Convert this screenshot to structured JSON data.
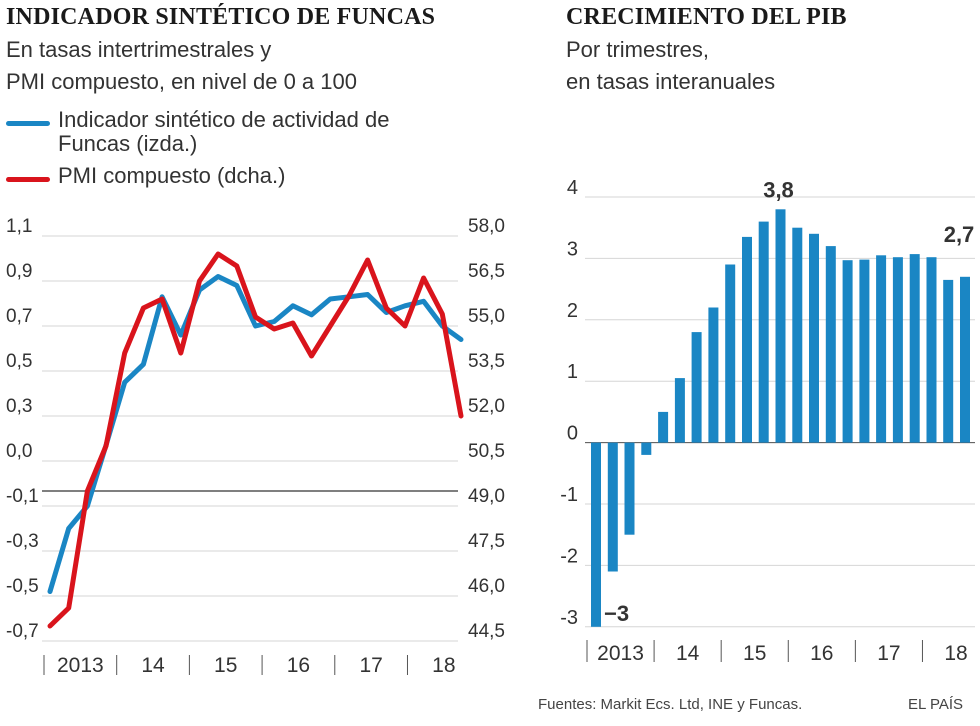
{
  "left_panel": {
    "title": "INDICADOR SINTÉTICO DE FUNCAS",
    "subtitle_line1": "En tasas intertrimestrales y",
    "subtitle_line2": "PMI compuesto, en nivel de 0 a 100",
    "legend": [
      {
        "label": "Indicador sintético de actividad de Funcas (izda.)",
        "color": "#1a86c4"
      },
      {
        "label": "PMI compuesto (dcha.)",
        "color": "#d9141c"
      }
    ]
  },
  "right_panel": {
    "title": "CRECIMIENTO DEL PIB",
    "subtitle_line1": "Por trimestres,",
    "subtitle_line2": "en tasas interanuales"
  },
  "footer": {
    "sources": "Fuentes: Markit Ecs. Ltd, INE y Funcas.",
    "brand": "EL PAÍS"
  },
  "colors": {
    "blue": "#1a86c4",
    "red": "#d9141c",
    "grid": "#d6d6d6",
    "axis": "#555555"
  },
  "chart_data": [
    {
      "type": "line",
      "title": "INDICADOR SINTÉTICO DE FUNCAS",
      "x": [
        "2013-Q1",
        "2013-Q2",
        "2013-Q3",
        "2013-Q4",
        "2014-Q1",
        "2014-Q2",
        "2014-Q3",
        "2014-Q4",
        "2015-Q1",
        "2015-Q2",
        "2015-Q3",
        "2015-Q4",
        "2016-Q1",
        "2016-Q2",
        "2016-Q3",
        "2016-Q4",
        "2017-Q1",
        "2017-Q2",
        "2017-Q3",
        "2017-Q4",
        "2018-Q1",
        "2018-Q2",
        "2018-Q3"
      ],
      "x_tick_labels": [
        "2013",
        "14",
        "15",
        "16",
        "17",
        "18"
      ],
      "y_left": {
        "ylim": [
          -0.7,
          1.1
        ],
        "ticks": [
          "1,1",
          "0,9",
          "0,7",
          "0,5",
          "0,3",
          "0,0",
          "-0,1",
          "-0,3",
          "-0,5",
          "-0,7"
        ]
      },
      "y_right": {
        "ylim": [
          44.5,
          58.0
        ],
        "ticks": [
          "58,0",
          "56,5",
          "55,0",
          "53,5",
          "52,0",
          "50,5",
          "49,0",
          "47,5",
          "46,0",
          "44,5"
        ]
      },
      "reference_line": {
        "axis": "right",
        "value": 49.5
      },
      "series": [
        {
          "name": "Indicador sintético de actividad de Funcas (izda.)",
          "axis": "left",
          "color": "#1a86c4",
          "values": [
            -0.48,
            -0.2,
            -0.1,
            0.17,
            0.45,
            0.53,
            0.83,
            0.66,
            0.86,
            0.92,
            0.88,
            0.7,
            0.72,
            0.79,
            0.75,
            0.82,
            0.83,
            0.84,
            0.76,
            0.79,
            0.81,
            0.7,
            0.64
          ]
        },
        {
          "name": "PMI compuesto (dcha.)",
          "axis": "right",
          "color": "#d9141c",
          "values": [
            45.0,
            45.6,
            49.5,
            51.0,
            54.1,
            55.6,
            55.9,
            54.1,
            56.5,
            57.4,
            57.0,
            55.3,
            54.9,
            55.1,
            54.0,
            55.0,
            56.0,
            57.2,
            55.6,
            55.0,
            56.6,
            55.4,
            52.0
          ]
        }
      ]
    },
    {
      "type": "bar",
      "title": "CRECIMIENTO DEL PIB",
      "categories": [
        "2013-Q1",
        "2013-Q2",
        "2013-Q3",
        "2013-Q4",
        "2014-Q1",
        "2014-Q2",
        "2014-Q3",
        "2014-Q4",
        "2015-Q1",
        "2015-Q2",
        "2015-Q3",
        "2015-Q4",
        "2016-Q1",
        "2016-Q2",
        "2016-Q3",
        "2016-Q4",
        "2017-Q1",
        "2017-Q2",
        "2017-Q3",
        "2017-Q4",
        "2018-Q1",
        "2018-Q2",
        "2018-Q3"
      ],
      "x_tick_labels": [
        "2013",
        "14",
        "15",
        "16",
        "17",
        "18"
      ],
      "values": [
        -3.0,
        -2.1,
        -1.5,
        -0.2,
        0.5,
        1.05,
        1.8,
        2.2,
        2.9,
        3.35,
        3.6,
        3.8,
        3.5,
        3.4,
        3.2,
        2.97,
        2.98,
        3.05,
        3.02,
        3.07,
        3.02,
        2.65,
        2.7
      ],
      "ylim": [
        -3,
        4
      ],
      "y_ticks": [
        "4",
        "3",
        "2",
        "1",
        "0",
        "-1",
        "-2",
        "-3"
      ],
      "annotations": [
        {
          "label": "−3",
          "category": "2013-Q1"
        },
        {
          "label": "3,8",
          "category": "2015-Q4"
        },
        {
          "label": "2,7",
          "category": "2018-Q3"
        }
      ],
      "color": "#1a86c4"
    }
  ]
}
